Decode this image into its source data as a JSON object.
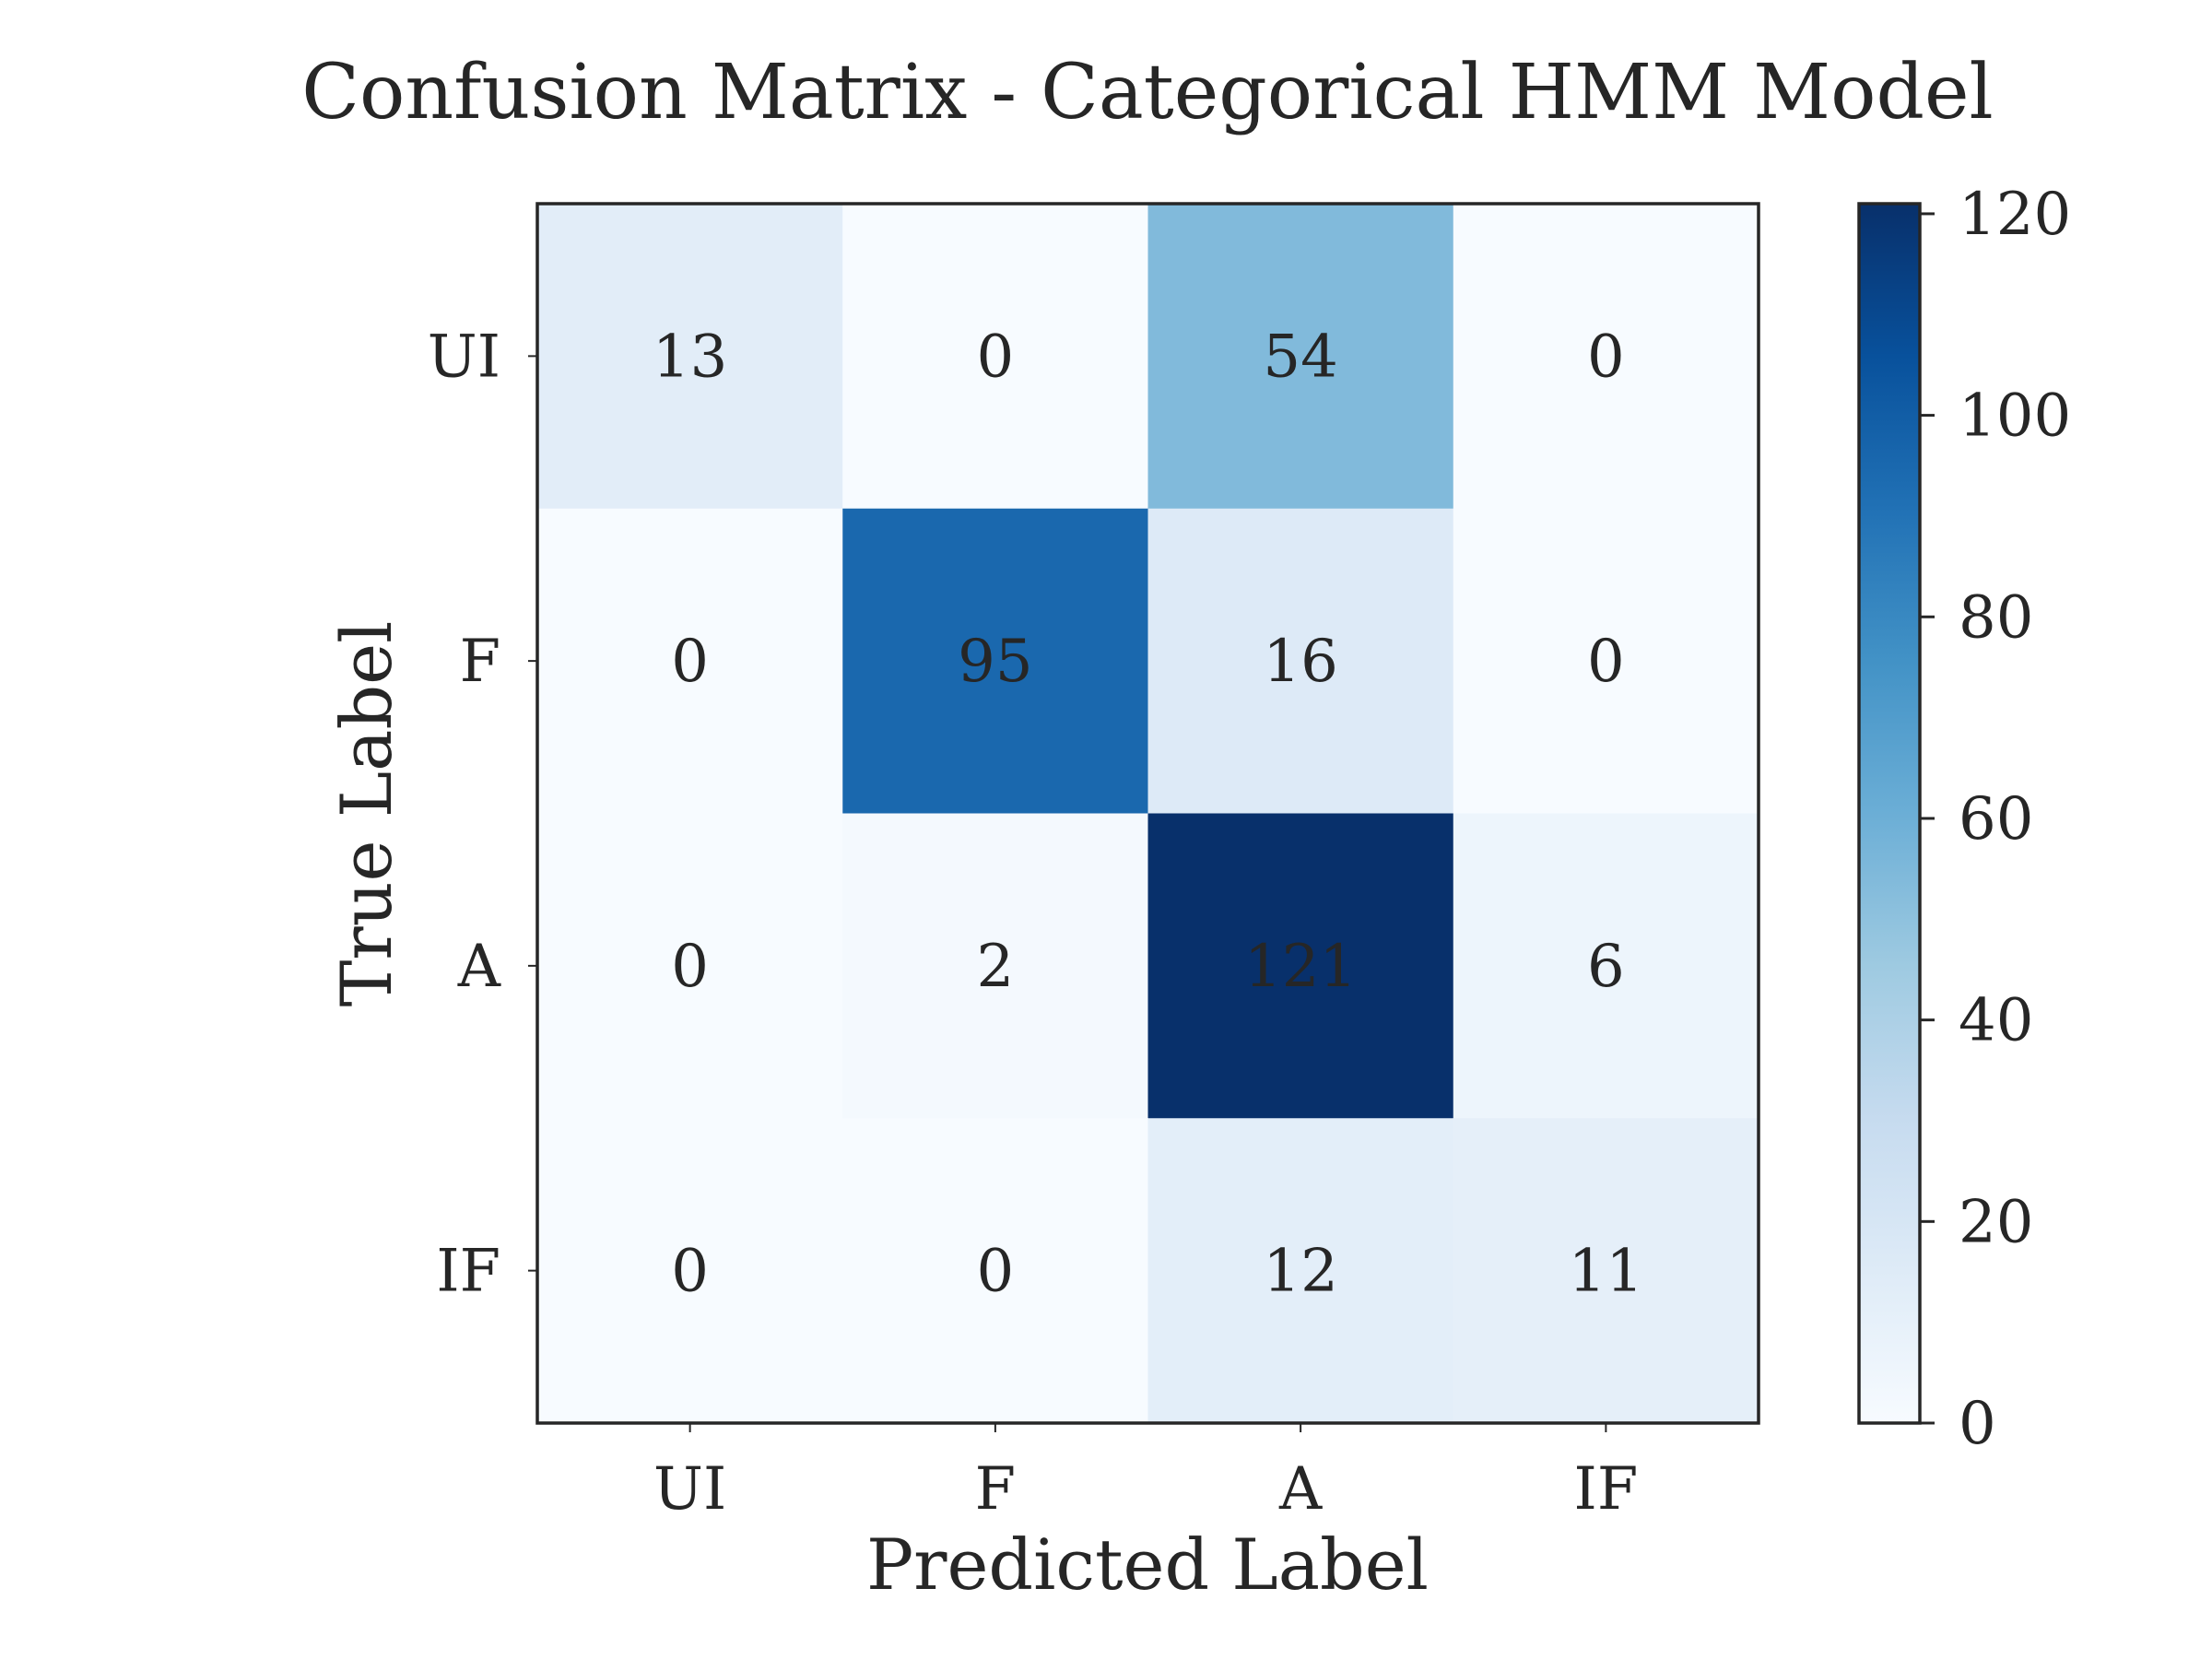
{
  "chart_data": {
    "type": "heatmap",
    "title": "Confusion Matrix - Categorical HMM Model",
    "xlabel": "Predicted Label",
    "ylabel": "True Label",
    "x_categories": [
      "UI",
      "F",
      "A",
      "IF"
    ],
    "y_categories": [
      "UI",
      "F",
      "A",
      "IF"
    ],
    "matrix": [
      [
        13,
        0,
        54,
        0
      ],
      [
        0,
        95,
        16,
        0
      ],
      [
        0,
        2,
        121,
        6
      ],
      [
        0,
        0,
        12,
        11
      ]
    ],
    "colorbar": {
      "colormap": "Blues",
      "range": [
        0,
        121
      ],
      "ticks": [
        0,
        20,
        40,
        60,
        80,
        100,
        120
      ],
      "tick_labels": [
        "0",
        "20",
        "40",
        "60",
        "80",
        "100",
        "120"
      ]
    },
    "grid": false
  }
}
